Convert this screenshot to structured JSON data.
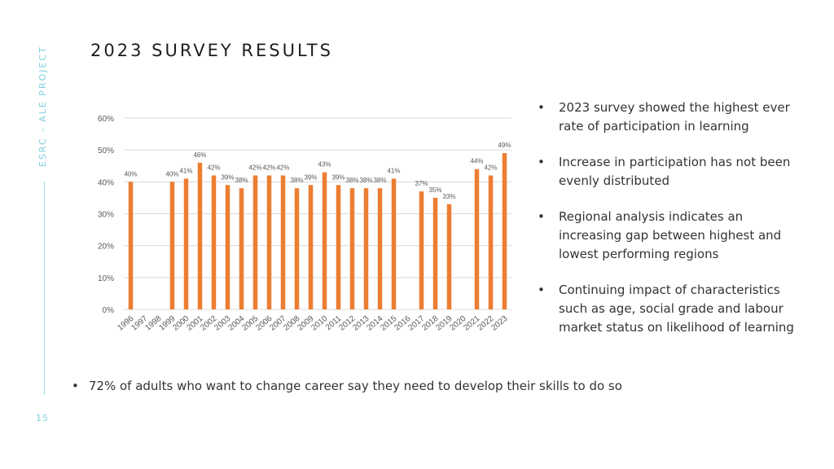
{
  "side": {
    "label": "ESRC – ALE PROJECT",
    "page_number": "15"
  },
  "title": "2023 SURVEY RESULTS",
  "bullets": [
    "2023 survey showed the highest ever rate of participation in learning",
    "Increase in participation has not been evenly distributed",
    "Regional analysis indicates an increasing gap between highest and lowest performing regions",
    "Continuing impact of characteristics such as age, social grade and labour market status on likelihood of learning"
  ],
  "bottom_note": "72% of adults who want to change career say they need to develop their skills to do so",
  "colors": {
    "bar": "#ed7d31",
    "accent": "#7fcfe0",
    "grid": "#d9d9d9"
  },
  "chart_data": {
    "type": "bar",
    "categories": [
      "1996",
      "1997",
      "1998",
      "1999",
      "2000",
      "2001",
      "2002",
      "2003",
      "2004",
      "2005",
      "2006",
      "2007",
      "2008",
      "2009",
      "2010",
      "2011",
      "2012",
      "2013",
      "2014",
      "2015",
      "2016",
      "2017",
      "2018",
      "2019",
      "2020",
      "2021",
      "2022",
      "2023"
    ],
    "values": [
      40,
      null,
      null,
      40,
      41,
      46,
      42,
      39,
      38,
      42,
      42,
      42,
      38,
      39,
      43,
      39,
      38,
      38,
      38,
      41,
      null,
      37,
      35,
      33,
      null,
      44,
      42,
      49
    ],
    "data_labels": [
      "40%",
      "",
      "",
      "40%",
      "41%",
      "46%",
      "42%",
      "39%",
      "38%",
      "42%",
      "42%",
      "42%",
      "38%",
      "39%",
      "43%",
      "39%",
      "38%",
      "38%",
      "38%",
      "41%",
      "",
      "37%",
      "35%",
      "33%",
      "",
      "44%",
      "42%",
      "49%"
    ],
    "yticks": [
      "0%",
      "10%",
      "20%",
      "30%",
      "40%",
      "50%",
      "60%"
    ],
    "ylim": [
      0,
      60
    ],
    "grid": true,
    "title": "",
    "xlabel": "",
    "ylabel": ""
  }
}
